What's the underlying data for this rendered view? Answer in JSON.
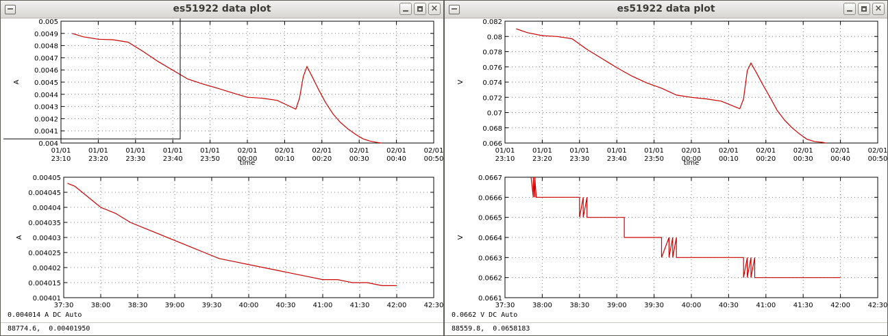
{
  "windows": [
    {
      "title": "es51922 data plot",
      "plots": [
        {
          "type": "line",
          "ylabel": "A",
          "xlabel": "time",
          "ylim": [
            0.004,
            0.005
          ],
          "yticks": [
            "0.004",
            "0.0041",
            "0.0042",
            "0.0043",
            "0.0044",
            "0.0045",
            "0.0046",
            "0.0047",
            "0.0048",
            "0.0049",
            "0.005"
          ],
          "xticks": [
            [
              "01/01",
              "23:10"
            ],
            [
              "01/01",
              "23:20"
            ],
            [
              "01/01",
              "23:30"
            ],
            [
              "01/01",
              "23:40"
            ],
            [
              "01/01",
              "23:50"
            ],
            [
              "02/01",
              "00:00"
            ],
            [
              "02/01",
              "00:10"
            ],
            [
              "02/01",
              "00:20"
            ],
            [
              "02/01",
              "00:30"
            ],
            [
              "02/01",
              "00:40"
            ],
            [
              "02/01",
              "00:50"
            ]
          ],
          "x": [
            3,
            6,
            10,
            14,
            18,
            22,
            26,
            30,
            34,
            38,
            42,
            46,
            50,
            54,
            58,
            62,
            63,
            64,
            65,
            66,
            67.5,
            69,
            71,
            73,
            75,
            77,
            79,
            81,
            83,
            85,
            86
          ],
          "y": [
            0.0049,
            0.004872,
            0.004852,
            0.004848,
            0.004828,
            0.004752,
            0.00467,
            0.004598,
            0.004525,
            0.004485,
            0.00445,
            0.004412,
            0.004375,
            0.004368,
            0.00435,
            0.004292,
            0.004278,
            0.00437,
            0.004545,
            0.004628,
            0.004538,
            0.004445,
            0.004332,
            0.004238,
            0.004168,
            0.004115,
            0.004072,
            0.004035,
            0.004015,
            0.004004,
            0.004
          ],
          "grid": true,
          "xlim": [
            0,
            100
          ]
        },
        {
          "type": "line",
          "ylabel": "A",
          "xlabel": "time",
          "ylim": [
            0.00401,
            0.00405
          ],
          "yticks": [
            "0.00401",
            "0.00401 5",
            "0.00402",
            "0.00402 5",
            "0.00403",
            "0.00403 5",
            "0.00404",
            "0.00404 5",
            "0.00405"
          ],
          "xticks": [
            [
              "",
              "37:30"
            ],
            [
              "",
              "38:00"
            ],
            [
              "",
              "38:30"
            ],
            [
              "",
              "39:00"
            ],
            [
              "",
              "39:30"
            ],
            [
              "",
              "40:00"
            ],
            [
              "",
              "40:30"
            ],
            [
              "",
              "41:00"
            ],
            [
              "",
              "41:30"
            ],
            [
              "",
              "42:00"
            ],
            [
              "",
              "42:30"
            ]
          ],
          "x": [
            0.05,
            0.15,
            0.3,
            0.5,
            0.7,
            0.9,
            1.1,
            1.3,
            1.5,
            1.7,
            1.9,
            2.1,
            2.3,
            2.5,
            2.7,
            2.9,
            3.1,
            3.3,
            3.5,
            3.7,
            3.9,
            4.1,
            4.3,
            4.5
          ],
          "y": [
            0.004048,
            0.004047,
            0.004044,
            0.00404,
            0.004038,
            0.004035,
            0.004033,
            0.004031,
            0.004029,
            0.004027,
            0.004025,
            0.004023,
            0.004022,
            0.004021,
            0.00402,
            0.004019,
            0.004018,
            0.004017,
            0.004016,
            0.004016,
            0.004015,
            0.004015,
            0.004014,
            0.004014
          ],
          "grid": true,
          "xlim": [
            0,
            5
          ]
        }
      ],
      "status_reading": "0.004014 A DC Auto",
      "status_coords": "88774.6,  0.00401950"
    },
    {
      "title": "es51922 data plot",
      "plots": [
        {
          "type": "line",
          "ylabel": "V",
          "xlabel": "time",
          "ylim": [
            0.066,
            0.082
          ],
          "yticks": [
            "0.066",
            "0.068",
            "0.07",
            "0.072",
            "0.074",
            "0.076",
            "0.078",
            "0.08",
            "0.082"
          ],
          "xticks": [
            [
              "01/01",
              "23:10"
            ],
            [
              "01/01",
              "23:20"
            ],
            [
              "01/01",
              "23:30"
            ],
            [
              "01/01",
              "23:40"
            ],
            [
              "01/01",
              "23:50"
            ],
            [
              "02/01",
              "00:00"
            ],
            [
              "02/01",
              "00:10"
            ],
            [
              "02/01",
              "00:20"
            ],
            [
              "02/01",
              "00:30"
            ],
            [
              "02/01",
              "00:40"
            ],
            [
              "02/01",
              "00:50"
            ]
          ],
          "x": [
            3,
            6,
            10,
            14,
            18,
            22,
            26,
            30,
            34,
            38,
            42,
            46,
            50,
            54,
            58,
            62,
            63,
            64,
            65,
            66,
            67.5,
            69,
            71,
            73,
            75,
            77,
            79,
            81,
            83,
            85,
            86
          ],
          "y": [
            0.081,
            0.0805,
            0.0801,
            0.08,
            0.0797,
            0.0783,
            0.0771,
            0.0759,
            0.0748,
            0.0739,
            0.0732,
            0.0723,
            0.072,
            0.0718,
            0.0715,
            0.0707,
            0.0705,
            0.0718,
            0.0755,
            0.0765,
            0.0752,
            0.0738,
            0.0721,
            0.0703,
            0.069,
            0.068,
            0.0672,
            0.0665,
            0.0662,
            0.0661,
            0.066
          ],
          "grid": true,
          "xlim": [
            0,
            100
          ]
        },
        {
          "type": "line",
          "ylabel": "V",
          "xlabel": "time",
          "ylim": [
            0.0661,
            0.0667
          ],
          "yticks": [
            "0.0661",
            "0.0662",
            "0.0663",
            "0.0664",
            "0.0665",
            "0.0666",
            "0.0667"
          ],
          "xticks": [
            [
              "",
              "37:30"
            ],
            [
              "",
              "38:00"
            ],
            [
              "",
              "38:30"
            ],
            [
              "",
              "39:00"
            ],
            [
              "",
              "39:30"
            ],
            [
              "",
              "40:00"
            ],
            [
              "",
              "40:30"
            ],
            [
              "",
              "41:00"
            ],
            [
              "",
              "41:30"
            ],
            [
              "",
              "42:00"
            ],
            [
              "",
              "42:30"
            ]
          ],
          "x": [
            0.35,
            0.38,
            0.38,
            0.4,
            0.4,
            0.42,
            0.42,
            1.0,
            1.0,
            1.05,
            1.05,
            1.1,
            1.1,
            1.15,
            1.15,
            1.6,
            1.6,
            1.65,
            1.65,
            2.1,
            2.1,
            2.2,
            2.2,
            2.25,
            2.25,
            2.3,
            2.3,
            2.35,
            2.35,
            2.4,
            2.4,
            3.2,
            3.2,
            3.25,
            3.25,
            3.3,
            3.3,
            3.35,
            3.35,
            3.4,
            3.4,
            4.5
          ],
          "y": [
            0.0667,
            0.0666,
            0.0667,
            0.0666,
            0.0667,
            0.0666,
            0.0666,
            0.0666,
            0.0665,
            0.0666,
            0.0665,
            0.0666,
            0.0665,
            0.0665,
            0.0665,
            0.0665,
            0.0664,
            0.0664,
            0.0664,
            0.0664,
            0.0663,
            0.0664,
            0.0663,
            0.0664,
            0.0663,
            0.0664,
            0.0663,
            0.0663,
            0.0663,
            0.0663,
            0.0663,
            0.0663,
            0.0662,
            0.0663,
            0.0662,
            0.0663,
            0.0662,
            0.0663,
            0.0662,
            0.0662,
            0.0662,
            0.0662
          ],
          "grid": true,
          "xlim": [
            0,
            5
          ]
        }
      ],
      "status_reading": "0.0662 V DC Auto",
      "status_coords": "88559.8,  0.0658183"
    }
  ],
  "colors": {
    "trace": "#cc0000",
    "grid": "#777777",
    "titlebar": "#d8d6d2"
  },
  "icons": [
    "window-menu-icon",
    "minimize-icon",
    "maximize-icon",
    "close-icon"
  ]
}
